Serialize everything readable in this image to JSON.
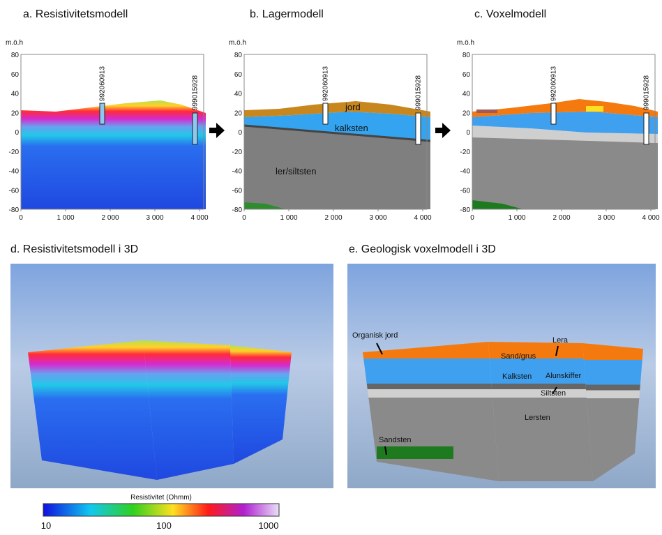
{
  "panels": [
    {
      "title": "a. Resistivitetsmodell",
      "y_axis_label": "m.ö.h",
      "yticks": [
        "80",
        "60",
        "40",
        "20",
        "0",
        "-20",
        "-40",
        "-60",
        "-80"
      ],
      "xticks": [
        "0",
        "1 000",
        "2 000",
        "3 000",
        "4 000"
      ],
      "boreholes": [
        "992060913",
        "999015928"
      ],
      "labels": []
    },
    {
      "title": "b. Lagermodell",
      "y_axis_label": "m.ö.h",
      "yticks": [
        "80",
        "60",
        "40",
        "20",
        "0",
        "-20",
        "-40",
        "-60",
        "-80"
      ],
      "xticks": [
        "0",
        "1 000",
        "2 000",
        "3 000",
        "4 000"
      ],
      "boreholes": [
        "992060913",
        "999015928"
      ],
      "labels": [
        "jord",
        "kalksten",
        "ler/siltsten"
      ]
    },
    {
      "title": "c. Voxelmodell",
      "y_axis_label": "m.ö.h",
      "yticks": [
        "80",
        "60",
        "40",
        "20",
        "0",
        "-20",
        "-40",
        "-60",
        "-80"
      ],
      "xticks": [
        "0",
        "1 000",
        "2 000",
        "3 000",
        "4 000"
      ],
      "boreholes": [
        "992060913",
        "999015928"
      ],
      "labels": []
    }
  ],
  "panels_3d": [
    {
      "title": "d. Resistivitetsmodell i 3D",
      "labels": []
    },
    {
      "title": "e. Geologisk voxelmodell i 3D",
      "labels": [
        "Organisk jord",
        "Lera",
        "Sand/grus",
        "Kalksten",
        "Alunskiffer",
        "Siltsten",
        "Lersten",
        "Sandsten"
      ]
    }
  ],
  "colorbar": {
    "title": "Resistivitet (Ohmm)",
    "ticks": [
      "10",
      "100",
      "1000"
    ]
  }
}
